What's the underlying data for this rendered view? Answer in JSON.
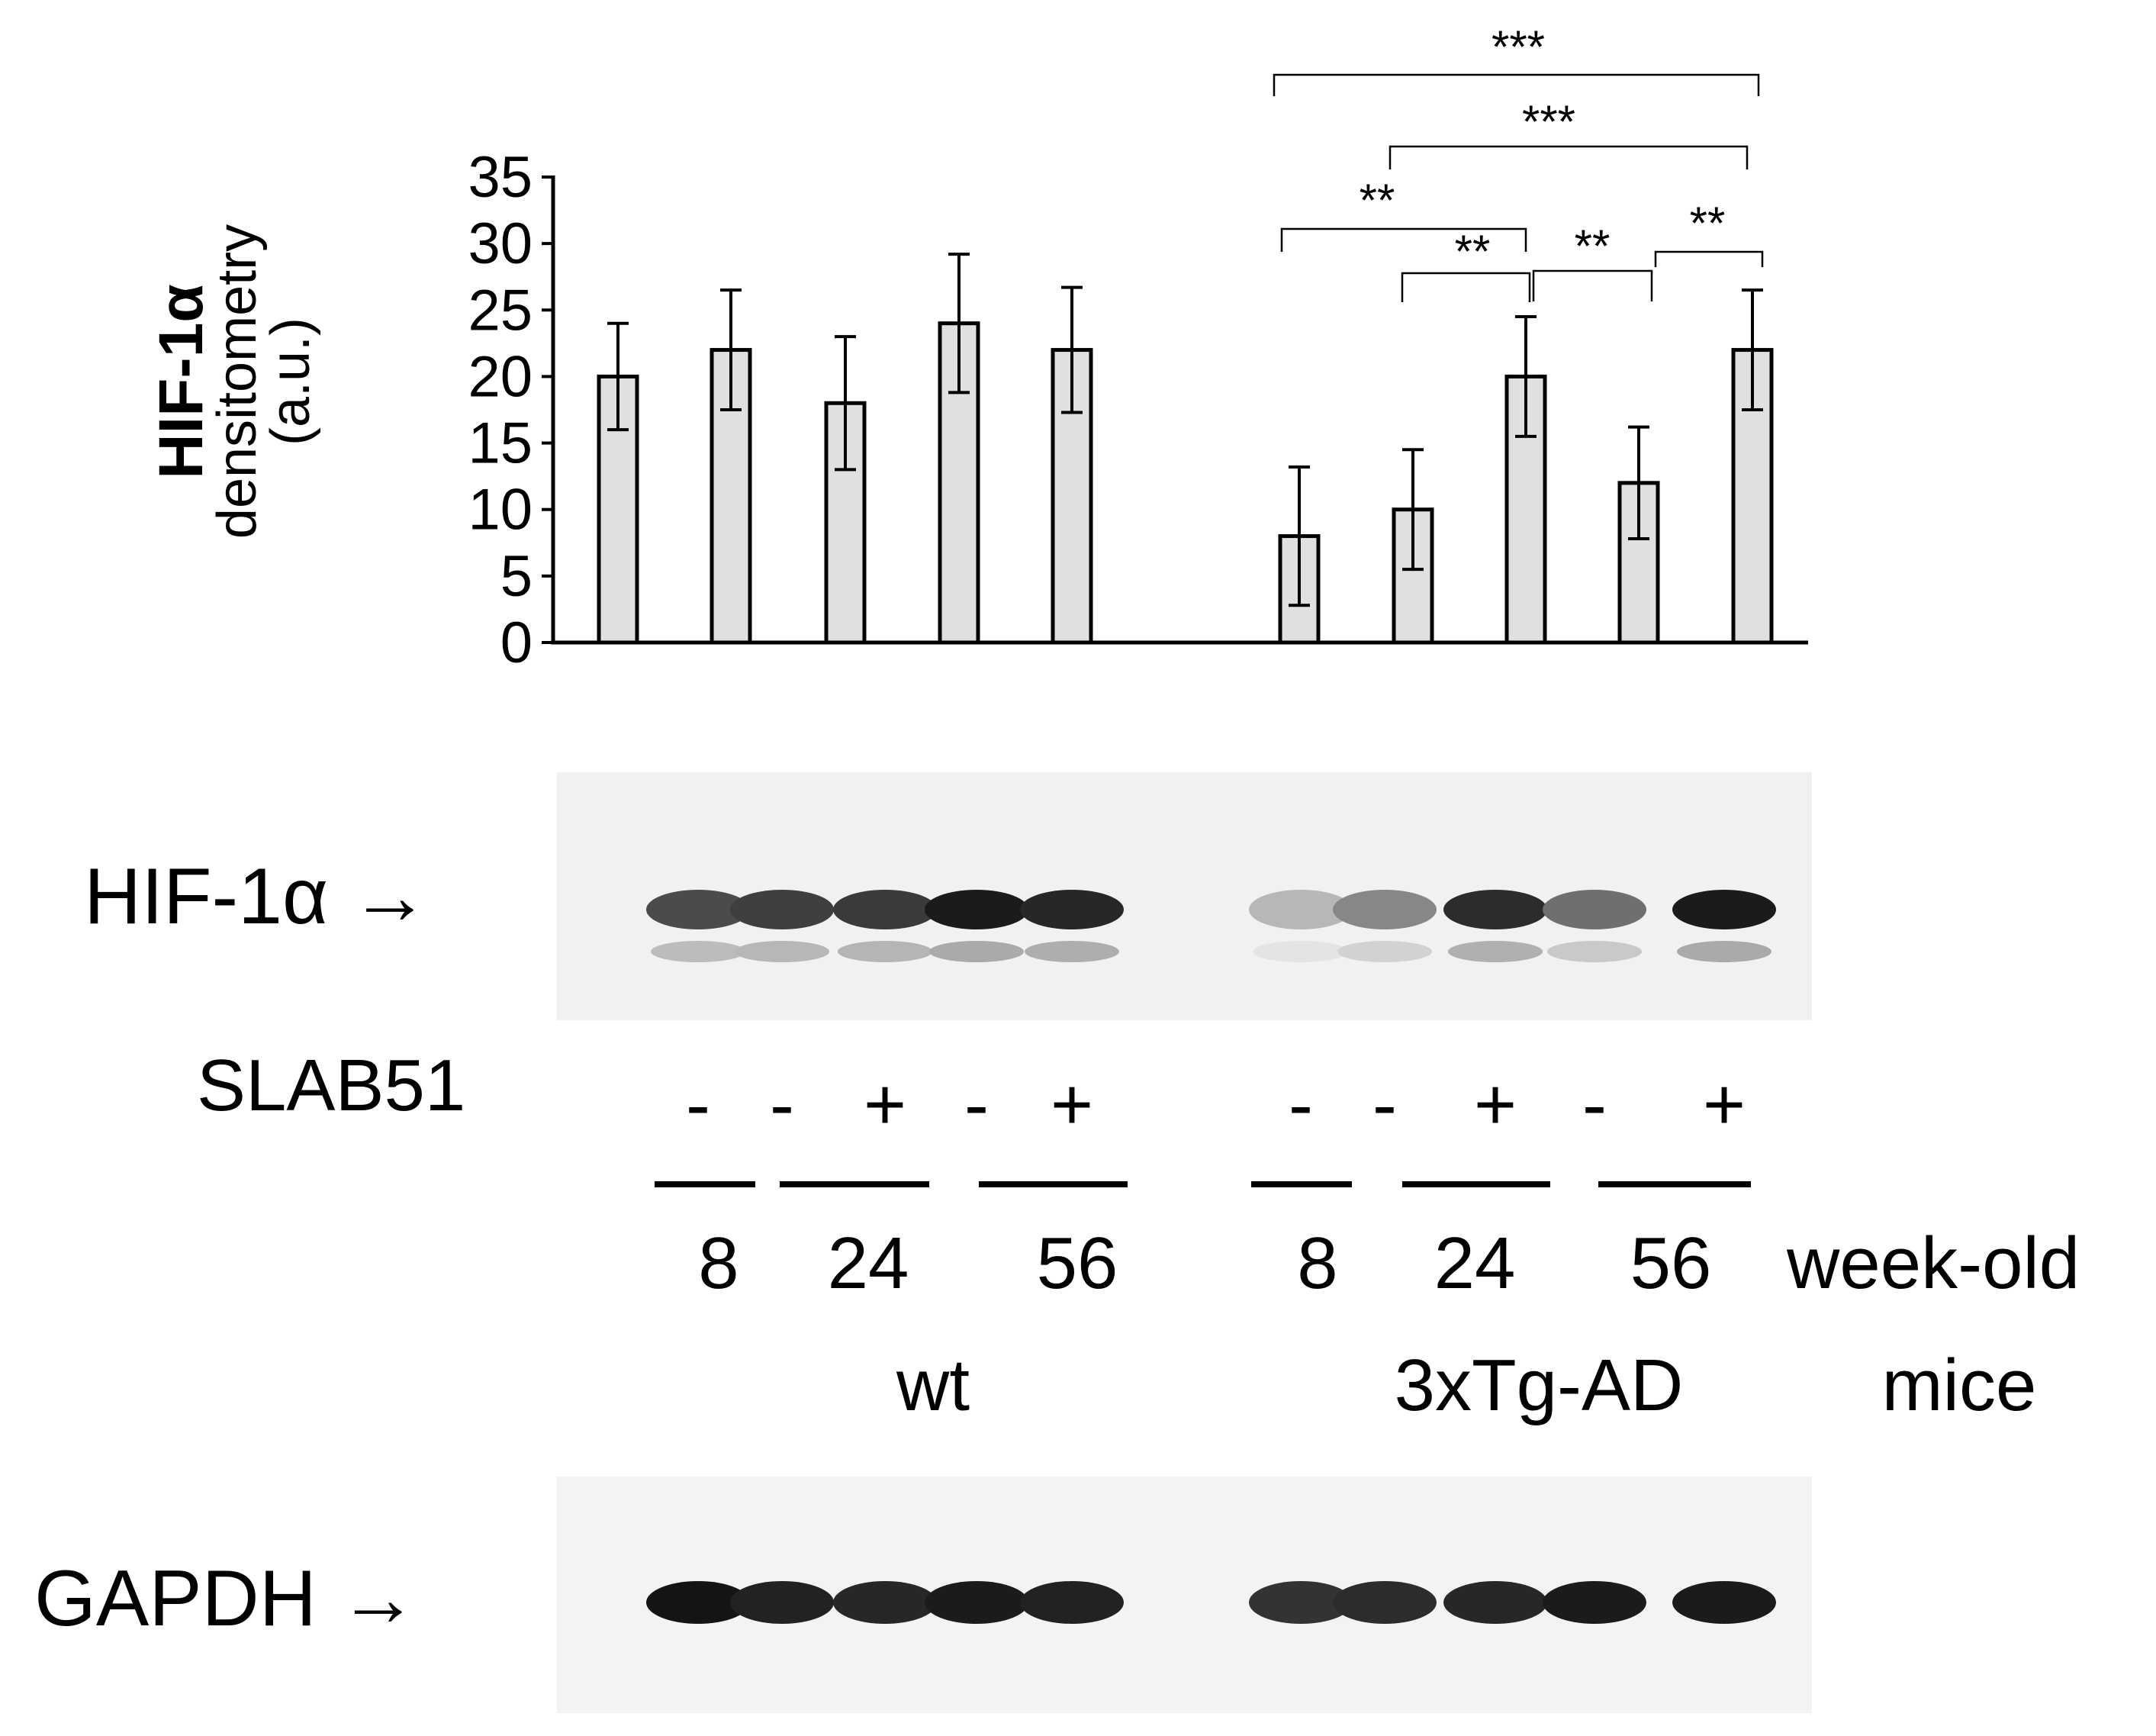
{
  "chart_data": {
    "type": "bar",
    "ylabel_bold": "HIF-1α",
    "ylabel_line2": "densitometry",
    "ylabel_line3": "(a.u.)",
    "ylim": [
      0,
      35
    ],
    "yticks": [
      "0",
      "5",
      "10",
      "15",
      "20",
      "25",
      "30",
      "35"
    ],
    "grid": false,
    "bar_color": "#e0e0e0",
    "bars": [
      {
        "value": 20,
        "error": 4
      },
      {
        "value": 22,
        "error": 4.5
      },
      {
        "value": 18,
        "error": 5
      },
      {
        "value": 24,
        "error": 5.2
      },
      {
        "value": 22,
        "error": 4.7
      },
      {
        "value": 8,
        "error": 5.2
      },
      {
        "value": 10,
        "error": 4.5
      },
      {
        "value": 20,
        "error": 4.5
      },
      {
        "value": 12,
        "error": 4.2
      },
      {
        "value": 22,
        "error": 4.5
      }
    ],
    "significance": [
      {
        "label": "***"
      },
      {
        "label": "***"
      },
      {
        "label": "**"
      },
      {
        "label": "**"
      },
      {
        "label": "**"
      },
      {
        "label": "**"
      }
    ]
  },
  "blots": {
    "hif_label": "HIF-1α →",
    "gapdh_label": "GAPDH →",
    "hif_intensity": [
      0.75,
      0.8,
      0.82,
      0.95,
      0.9,
      0.3,
      0.5,
      0.88,
      0.6,
      0.95
    ],
    "gapdh_intensity": [
      0.98,
      0.92,
      0.9,
      0.95,
      0.92,
      0.85,
      0.88,
      0.9,
      0.95,
      0.95
    ]
  },
  "treatment": {
    "label": "SLAB51",
    "signs": [
      "-",
      "-",
      "+",
      "-",
      "+",
      "-",
      "-",
      "+",
      "-",
      "+"
    ]
  },
  "ages": {
    "values": [
      "8",
      "24",
      "56",
      "8",
      "24",
      "56"
    ],
    "unit": "week-old"
  },
  "groups": {
    "wt": "wt",
    "tg": "3xTg-AD",
    "suffix": "mice"
  }
}
